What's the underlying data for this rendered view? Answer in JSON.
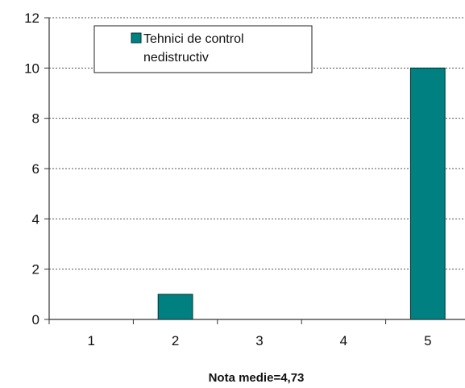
{
  "chart_data": {
    "type": "bar",
    "categories": [
      "1",
      "2",
      "3",
      "4",
      "5"
    ],
    "series": [
      {
        "name": "Tehnici de control nedistructiv",
        "values": [
          0,
          1,
          0,
          0,
          10
        ]
      }
    ],
    "ylim": [
      0,
      12
    ],
    "yticks": [
      "0",
      "2",
      "4",
      "6",
      "8",
      "10",
      "12"
    ],
    "xlabel": "Nota medie=4,73",
    "ylabel": "",
    "title": "",
    "legend": {
      "placement": "top-left",
      "lines": [
        "Tehnici de control",
        "nedistructiv"
      ]
    },
    "grid": true,
    "colors": {
      "bar": "#008080",
      "bar_border": "#003333",
      "grid": "#555555",
      "axis": "#333333"
    }
  }
}
